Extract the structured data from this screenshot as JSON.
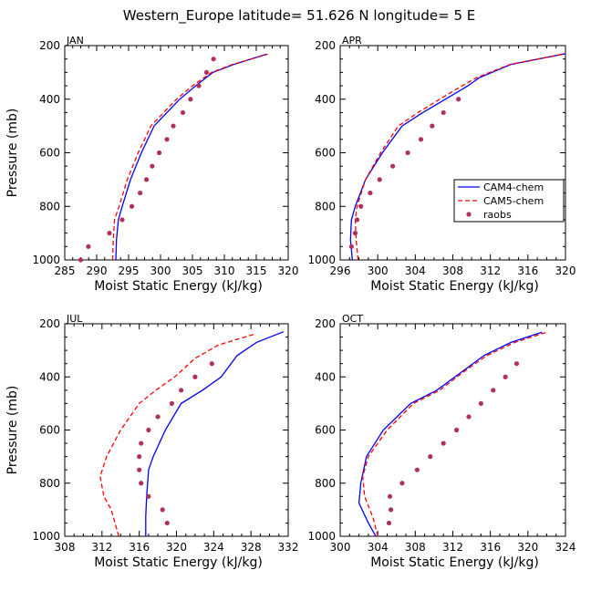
{
  "figure_title": "Western_Europe  latitude= 51.626 N longitude= 5 E",
  "colors": {
    "cam4": "#0000ff",
    "cam5": "#ff0000",
    "raobs": "#b03060"
  },
  "legend": [
    "CAM4-chem",
    "CAM5-chem",
    "raobs"
  ],
  "chart_data": [
    {
      "type": "line",
      "panel": "JAN",
      "xlabel": "Moist Static Energy (kJ/kg)",
      "ylabel": "Pressure (mb)",
      "xlim": [
        285,
        320
      ],
      "ylim": [
        1000,
        200
      ],
      "xticks": [
        285,
        290,
        295,
        300,
        305,
        310,
        315,
        320
      ],
      "yticks": [
        200,
        400,
        600,
        800,
        1000
      ],
      "series": [
        {
          "name": "CAM4-chem",
          "style": "solid",
          "x": [
            293.0,
            293.1,
            293.4,
            294.0,
            295.3,
            297.0,
            299.0,
            301.0,
            303.0,
            305.5,
            308.2,
            311.5,
            316.6
          ],
          "y": [
            1000,
            925,
            850,
            800,
            700,
            600,
            500,
            450,
            400,
            350,
            300,
            270,
            232
          ]
        },
        {
          "name": "CAM5-chem",
          "style": "dashed",
          "x": [
            292.5,
            292.6,
            292.8,
            293.5,
            294.8,
            296.5,
            298.5,
            300.5,
            302.5,
            305.0,
            308.0,
            311.3,
            316.8
          ],
          "y": [
            1000,
            925,
            850,
            800,
            700,
            600,
            500,
            450,
            400,
            350,
            300,
            270,
            232
          ]
        },
        {
          "name": "raobs",
          "style": "markers",
          "x": [
            287.5,
            288.7,
            292.0,
            294.0,
            295.5,
            296.8,
            297.8,
            298.7,
            299.8,
            301.0,
            302.0,
            303.5,
            304.7,
            306.0,
            307.2,
            308.3
          ],
          "y": [
            1000,
            950,
            900,
            850,
            800,
            750,
            700,
            650,
            600,
            550,
            500,
            450,
            400,
            350,
            300,
            250
          ]
        }
      ]
    },
    {
      "type": "line",
      "panel": "APR",
      "xlabel": "Moist Static Energy (kJ/kg)",
      "ylabel": "",
      "xlim": [
        296,
        320
      ],
      "ylim": [
        1000,
        200
      ],
      "xticks": [
        296,
        300,
        304,
        308,
        312,
        316,
        320
      ],
      "yticks": [
        200,
        400,
        600,
        800,
        1000
      ],
      "series": [
        {
          "name": "CAM4-chem",
          "style": "solid",
          "x": [
            297.3,
            297.1,
            297.2,
            297.6,
            298.7,
            300.5,
            302.6,
            304.8,
            307.2,
            309.6,
            310.8,
            314.2,
            320.0
          ],
          "y": [
            1000,
            925,
            850,
            800,
            700,
            600,
            500,
            450,
            400,
            350,
            320,
            270,
            230
          ]
        },
        {
          "name": "CAM5-chem",
          "style": "dashed",
          "x": [
            297.9,
            297.7,
            297.6,
            297.8,
            298.7,
            300.3,
            302.2,
            304.3,
            306.6,
            309.0,
            310.5,
            314.1,
            320.0
          ],
          "y": [
            1000,
            925,
            850,
            800,
            700,
            600,
            500,
            450,
            400,
            350,
            320,
            270,
            230
          ]
        },
        {
          "name": "raobs",
          "style": "markers",
          "x": [
            297.2,
            297.6,
            297.8,
            298.2,
            299.2,
            300.2,
            301.6,
            303.2,
            304.6,
            305.8,
            307.0,
            308.6
          ],
          "y": [
            950,
            900,
            850,
            800,
            750,
            700,
            650,
            600,
            550,
            500,
            450,
            400
          ]
        }
      ]
    },
    {
      "type": "line",
      "panel": "JUL",
      "xlabel": "Moist Static Energy (kJ/kg)",
      "ylabel": "Pressure (mb)",
      "xlim": [
        308,
        332
      ],
      "ylim": [
        1000,
        200
      ],
      "xticks": [
        308,
        312,
        316,
        320,
        324,
        328,
        332
      ],
      "yticks": [
        200,
        400,
        600,
        800,
        1000
      ],
      "series": [
        {
          "name": "CAM4-chem",
          "style": "solid",
          "x": [
            316.7,
            316.7,
            316.8,
            317.0,
            317.5,
            318.8,
            320.5,
            322.8,
            324.8,
            326.5,
            328.6,
            331.5
          ],
          "y": [
            1000,
            925,
            850,
            750,
            700,
            600,
            500,
            450,
            400,
            320,
            270,
            230
          ]
        },
        {
          "name": "CAM5-chem",
          "style": "dashed",
          "x": [
            313.8,
            313.0,
            312.2,
            311.8,
            312.5,
            314.0,
            316.0,
            317.8,
            319.8,
            322.0,
            324.5,
            328.3
          ],
          "y": [
            1000,
            900,
            850,
            775,
            700,
            600,
            500,
            450,
            400,
            330,
            280,
            240
          ]
        },
        {
          "name": "raobs",
          "style": "markers",
          "x": [
            319.0,
            318.5,
            317.0,
            316.2,
            316.0,
            316.0,
            316.2,
            317.0,
            318.0,
            319.5,
            320.5,
            322.0,
            323.8
          ],
          "y": [
            950,
            900,
            850,
            800,
            750,
            700,
            650,
            600,
            550,
            500,
            450,
            400,
            350
          ]
        }
      ]
    },
    {
      "type": "line",
      "panel": "OCT",
      "xlabel": "Moist Static Energy (kJ/kg)",
      "ylabel": "",
      "xlim": [
        300,
        324
      ],
      "ylim": [
        1000,
        200
      ],
      "xticks": [
        300,
        304,
        308,
        312,
        316,
        320,
        324
      ],
      "yticks": [
        200,
        400,
        600,
        800,
        1000
      ],
      "series": [
        {
          "name": "CAM4-chem",
          "style": "solid",
          "x": [
            303.8,
            303.0,
            302.0,
            302.2,
            302.8,
            304.6,
            307.5,
            310.3,
            313.0,
            315.3,
            318.2,
            321.5
          ],
          "y": [
            1000,
            950,
            875,
            800,
            700,
            600,
            500,
            450,
            380,
            320,
            270,
            232
          ]
        },
        {
          "name": "CAM5-chem",
          "style": "dashed",
          "x": [
            304.0,
            303.5,
            302.6,
            302.4,
            303.0,
            305.0,
            307.8,
            310.6,
            313.2,
            315.6,
            318.6,
            322.0
          ],
          "y": [
            1000,
            930,
            850,
            775,
            700,
            600,
            500,
            450,
            380,
            320,
            270,
            232
          ]
        },
        {
          "name": "raobs",
          "style": "markers",
          "x": [
            305.2,
            305.4,
            305.3,
            306.6,
            308.2,
            309.6,
            311.0,
            312.4,
            313.7,
            315.0,
            316.3,
            317.6,
            318.8
          ],
          "y": [
            950,
            900,
            850,
            800,
            750,
            700,
            650,
            600,
            550,
            500,
            450,
            400,
            350
          ]
        }
      ]
    }
  ]
}
